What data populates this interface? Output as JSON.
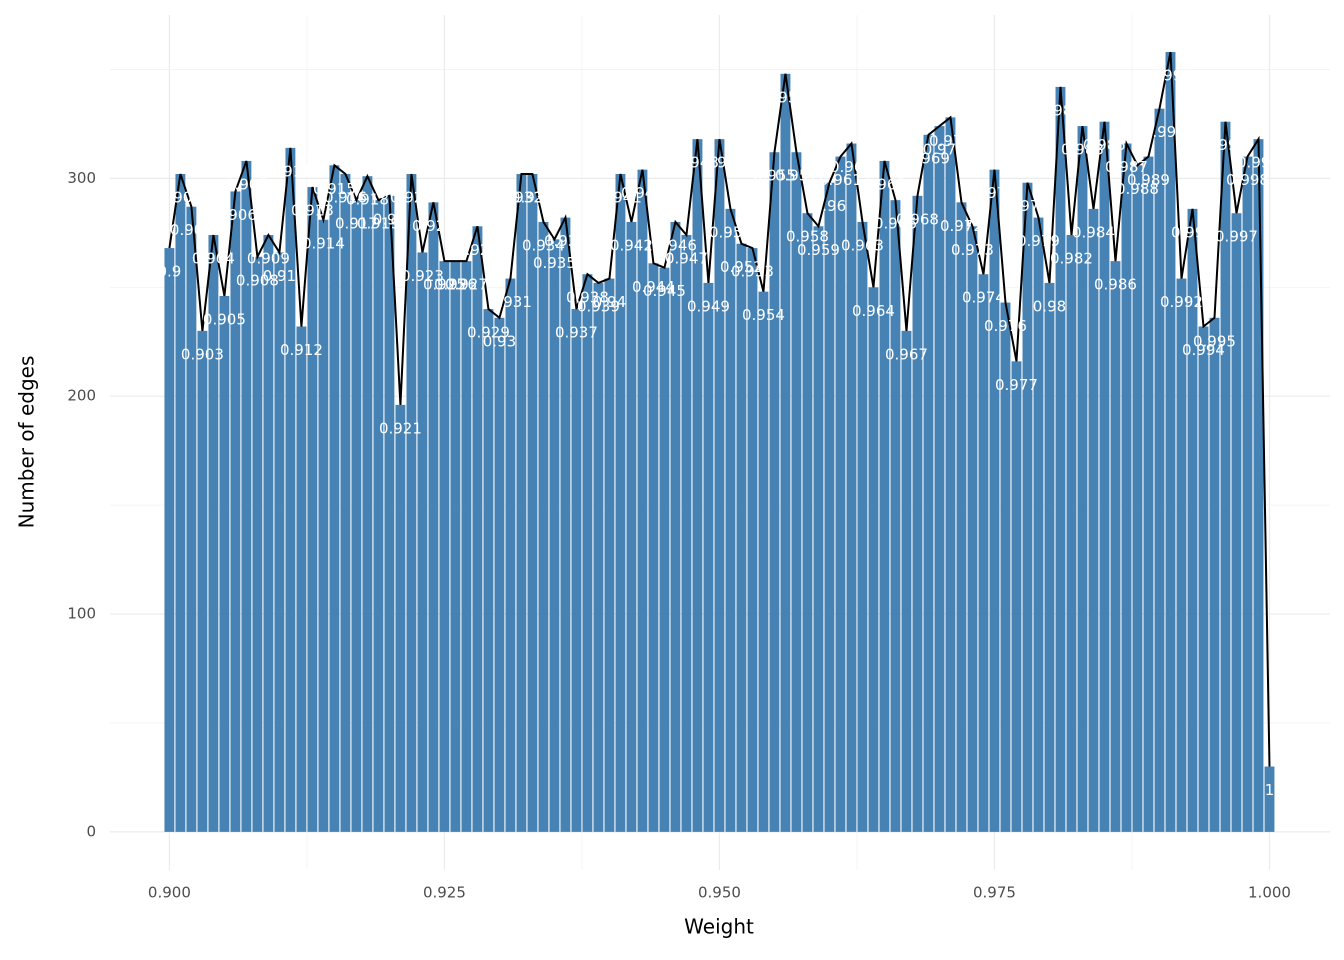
{
  "chart_data": {
    "type": "bar",
    "xlabel": "Weight",
    "ylabel": "Number of edges",
    "x": [
      0.9,
      0.901,
      0.902,
      0.903,
      0.904,
      0.905,
      0.906,
      0.907,
      0.908,
      0.909,
      0.91,
      0.911,
      0.912,
      0.913,
      0.914,
      0.915,
      0.916,
      0.917,
      0.918,
      0.919,
      0.92,
      0.921,
      0.922,
      0.923,
      0.924,
      0.925,
      0.926,
      0.927,
      0.928,
      0.929,
      0.93,
      0.931,
      0.932,
      0.933,
      0.934,
      0.935,
      0.936,
      0.937,
      0.938,
      0.939,
      0.94,
      0.941,
      0.942,
      0.943,
      0.944,
      0.945,
      0.946,
      0.947,
      0.948,
      0.949,
      0.95,
      0.951,
      0.952,
      0.953,
      0.954,
      0.955,
      0.956,
      0.957,
      0.958,
      0.959,
      0.96,
      0.961,
      0.962,
      0.963,
      0.964,
      0.965,
      0.966,
      0.967,
      0.968,
      0.969,
      0.97,
      0.971,
      0.972,
      0.973,
      0.974,
      0.975,
      0.976,
      0.977,
      0.978,
      0.979,
      0.98,
      0.981,
      0.982,
      0.983,
      0.984,
      0.985,
      0.986,
      0.987,
      0.988,
      0.989,
      0.99,
      0.991,
      0.992,
      0.993,
      0.994,
      0.995,
      0.996,
      0.997,
      0.998,
      0.999,
      1
    ],
    "values": [
      268,
      302,
      287,
      230,
      274,
      246,
      294,
      308,
      264,
      274,
      266,
      314,
      232,
      296,
      281,
      306,
      302,
      290,
      301,
      290,
      292,
      196,
      302,
      266,
      289,
      262,
      262,
      262,
      278,
      240,
      236,
      254,
      302,
      302,
      280,
      272,
      282,
      240,
      256,
      252,
      254,
      302,
      280,
      304,
      261,
      259,
      280,
      274,
      318,
      252,
      318,
      286,
      270,
      268,
      248,
      312,
      348,
      312,
      284,
      278,
      298,
      310,
      316,
      280,
      250,
      308,
      290,
      230,
      292,
      320,
      324,
      328,
      289,
      278,
      256,
      304,
      243,
      216,
      298,
      282,
      252,
      342,
      274,
      324,
      286,
      326,
      262,
      316,
      306,
      310,
      332,
      358,
      254,
      286,
      232,
      236,
      326,
      284,
      310,
      318,
      30
    ],
    "color": "#4682b4",
    "line_color": "#000000",
    "label_color": "#ffffff",
    "xlim": [
      0.8946,
      1.0055
    ],
    "ylim": [
      -17.5,
      375
    ],
    "xticks": [
      {
        "value": 0.9,
        "label": "0.900"
      },
      {
        "value": 0.925,
        "label": "0.925"
      },
      {
        "value": 0.95,
        "label": "0.950"
      },
      {
        "value": 0.975,
        "label": "0.975"
      },
      {
        "value": 1,
        "label": "1.000"
      }
    ],
    "yticks": [
      0,
      100,
      200,
      300
    ],
    "grid": true
  }
}
